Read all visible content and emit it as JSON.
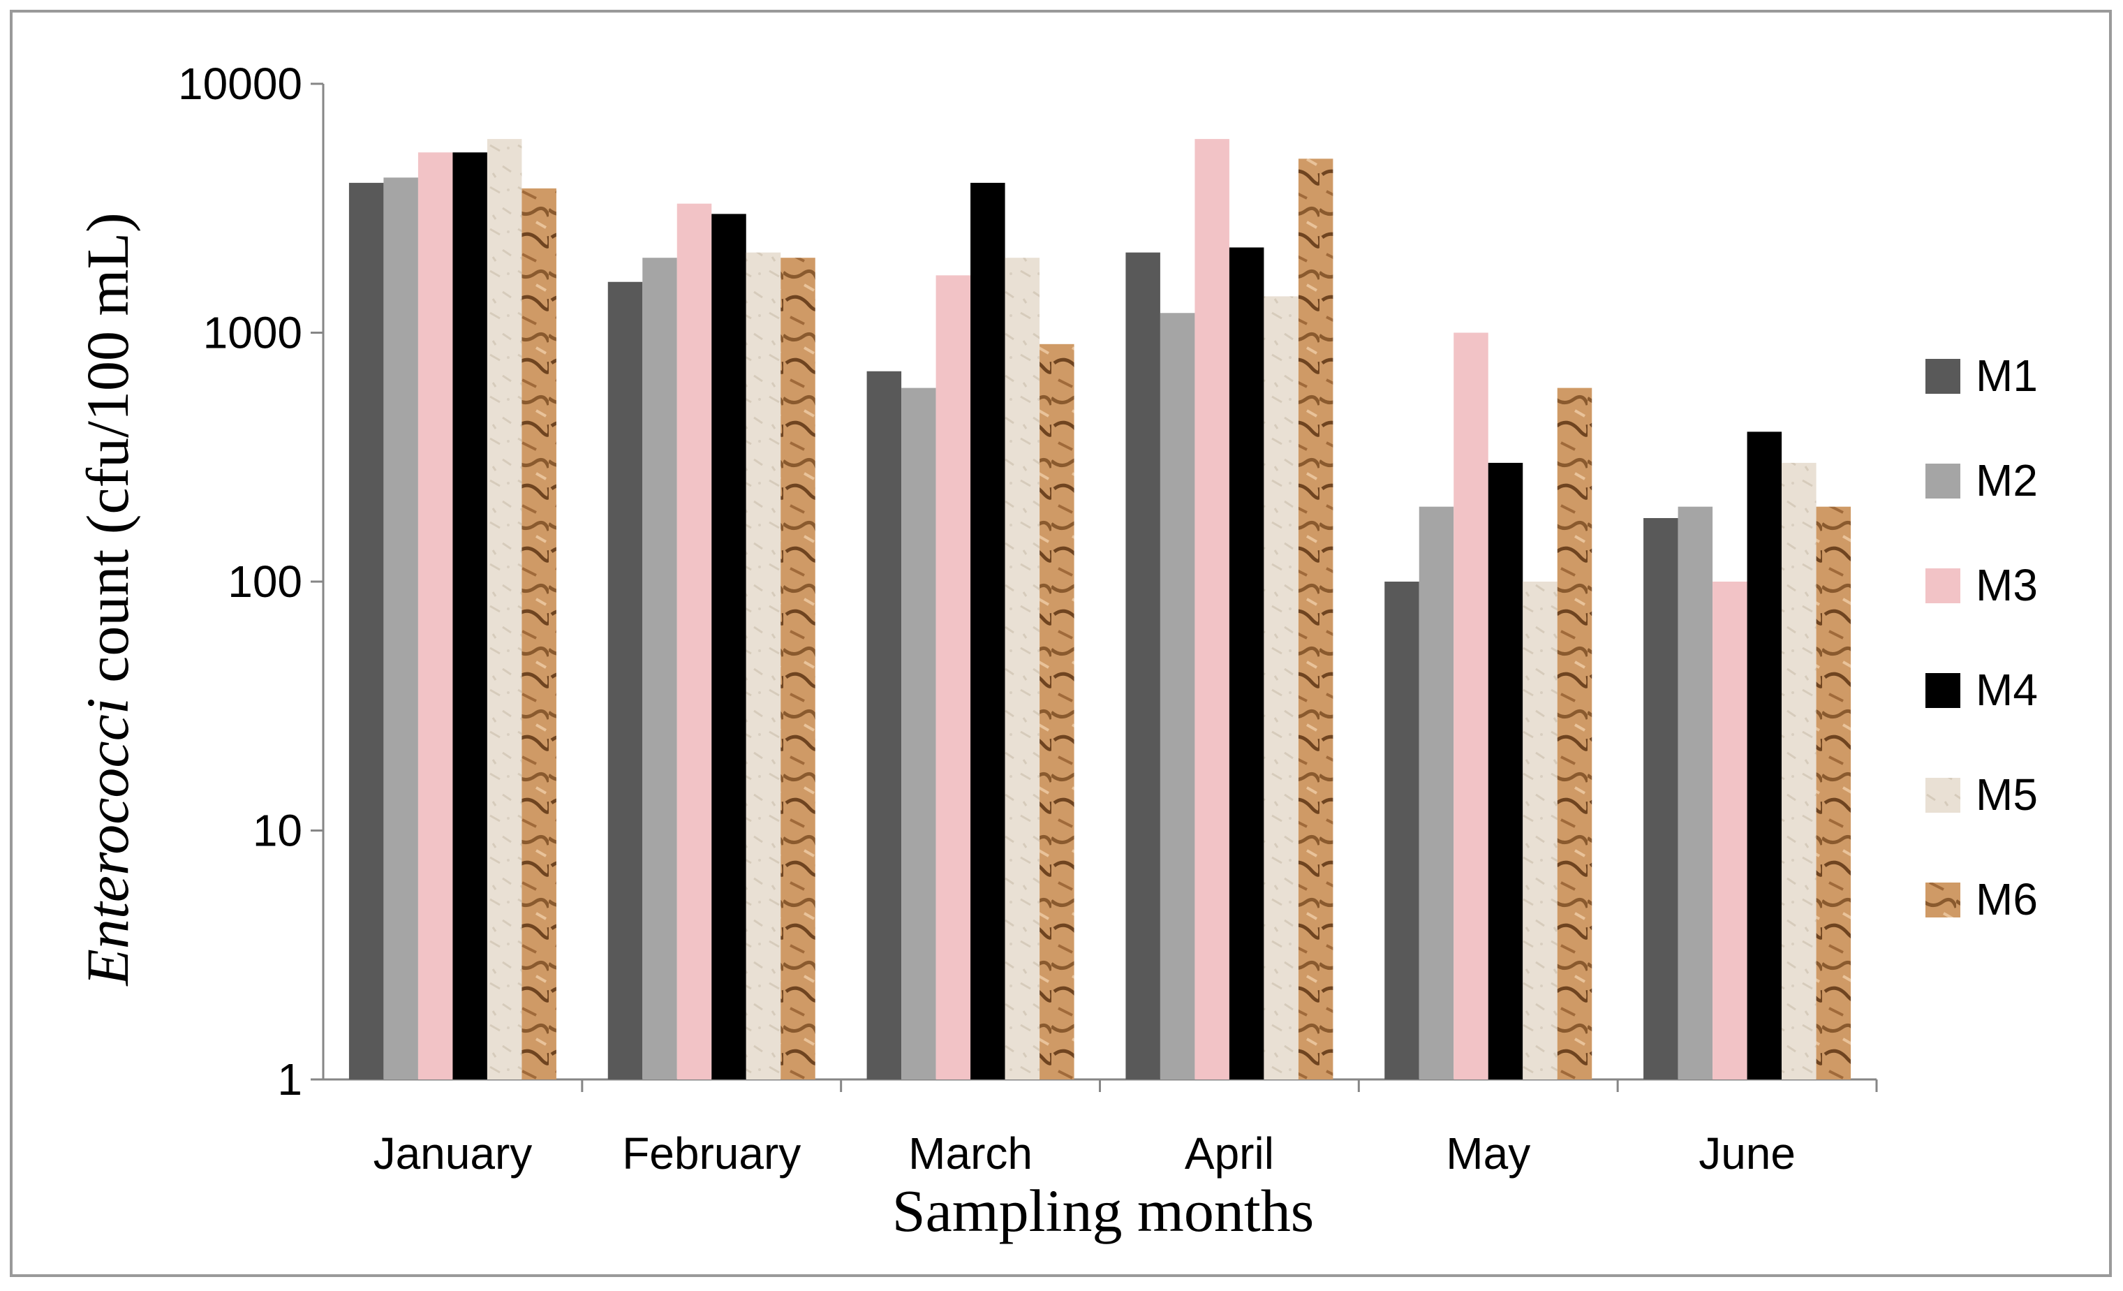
{
  "chart_data": {
    "type": "bar",
    "y_scale": "log",
    "ylim": [
      1,
      10000
    ],
    "yticks": [
      "1",
      "10",
      "100",
      "1000",
      "10000"
    ],
    "ytick_values": [
      1,
      10,
      100,
      1000,
      10000
    ],
    "categories": [
      "January",
      "February",
      "March",
      "April",
      "May",
      "June"
    ],
    "xlabel": "Sampling months",
    "ylabel_italic": "Enterococci",
    "ylabel_rest": " count (cfu/100 mL)",
    "legend_position": "right",
    "grid": false,
    "series": [
      {
        "name": "M1",
        "color": "#595959",
        "pattern": "solid",
        "values": [
          4000,
          1600,
          700,
          2100,
          100,
          180
        ]
      },
      {
        "name": "M2",
        "color": "#a5a5a5",
        "pattern": "solid",
        "values": [
          4200,
          2000,
          600,
          1200,
          200,
          200
        ]
      },
      {
        "name": "M3",
        "color": "#f2c3c6",
        "pattern": "solid",
        "values": [
          5300,
          3300,
          1700,
          6000,
          1000,
          100
        ]
      },
      {
        "name": "M4",
        "color": "#000000",
        "pattern": "solid",
        "values": [
          5300,
          3000,
          4000,
          2200,
          300,
          400
        ]
      },
      {
        "name": "M5",
        "color": "#e9e0d4",
        "pattern": "texture-light",
        "values": [
          6000,
          2100,
          2000,
          1400,
          100,
          300
        ]
      },
      {
        "name": "M6",
        "color": "#c8905c",
        "pattern": "texture-brown",
        "values": [
          3800,
          2000,
          900,
          5000,
          600,
          200
        ]
      }
    ]
  }
}
